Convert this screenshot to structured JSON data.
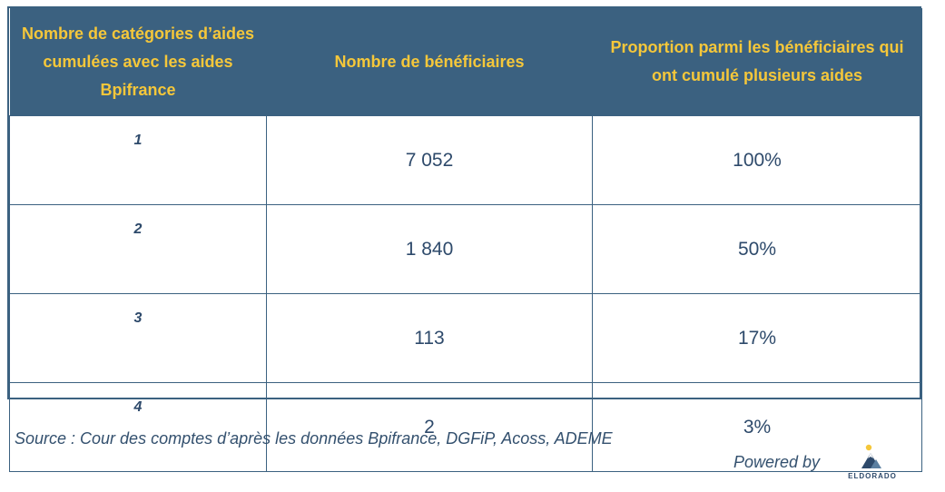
{
  "table": {
    "headers": [
      "Nombre de catégories d’aides cumulées avec les aides Bpifrance",
      "Nombre de bénéficiaires",
      "Proportion parmi les bénéficiaires qui ont cumulé plusieurs aides"
    ],
    "rows": [
      {
        "categories": "1",
        "beneficiaires": "7 052",
        "proportion": "100%"
      },
      {
        "categories": "2",
        "beneficiaires": "1 840",
        "proportion": "50%"
      },
      {
        "categories": "3",
        "beneficiaires": "113",
        "proportion": "17%"
      },
      {
        "categories": "4",
        "beneficiaires": "2",
        "proportion": "3%"
      }
    ]
  },
  "source": "Source : Cour des comptes d’après les données Bpifrance, DGFiP, Acoss, ADEME",
  "footer": {
    "powered_by": "Powered by",
    "logo_text": "ELDORADO"
  },
  "colors": {
    "header_bg": "#3b6180",
    "header_text": "#f5c73a",
    "body_text": "#2e4a6b"
  }
}
